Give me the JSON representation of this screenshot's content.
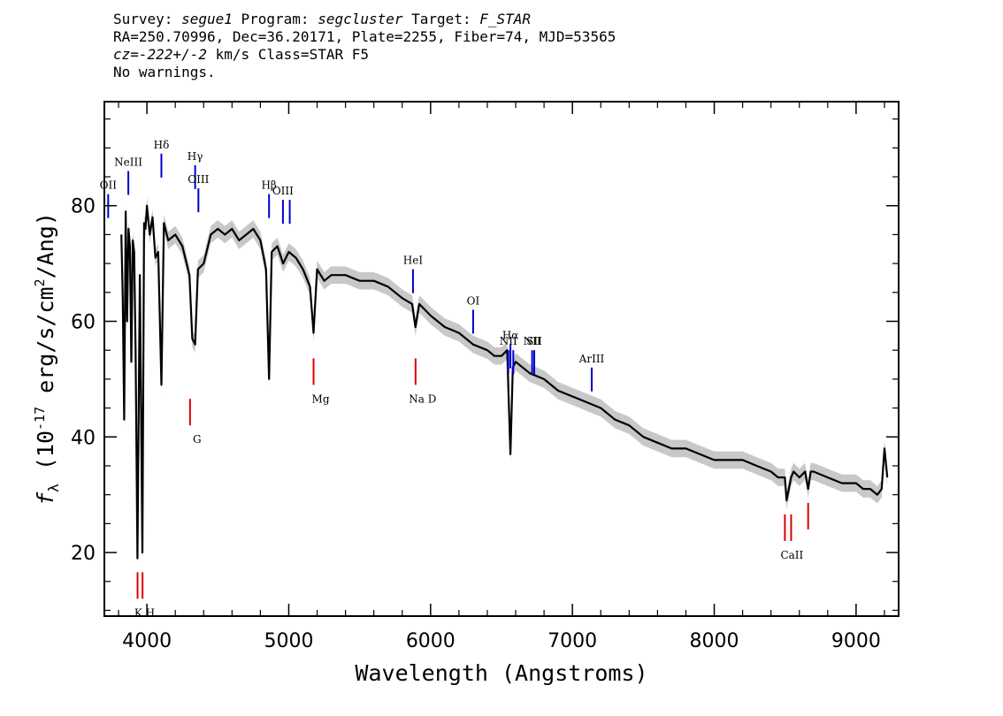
{
  "header": {
    "line1_prefix": "Survey: ",
    "survey": "segue1",
    "line1_mid": " Program: ",
    "program": "segcluster",
    "line1_mid2": " Target: ",
    "target": "F_STAR",
    "line2": "RA=250.70996, Dec=36.20171, Plate=2255, Fiber=74, MJD=53565",
    "line3_cz": "cz=-222+/-2",
    "line3_rest": " km/s Class=STAR F5",
    "line4": "No warnings."
  },
  "colors": {
    "flux": "#000000",
    "error_band": "#c8c8c8",
    "emission": "#0000cc",
    "absorption": "#dd0000"
  },
  "chart_data": {
    "type": "line",
    "xlabel": "Wavelength (Angstroms)",
    "ylabel": "f_λ (10^-17 erg/s/cm²/Ang)",
    "xlim": [
      3700,
      9300
    ],
    "ylim": [
      9,
      98
    ],
    "x_ticks": [
      4000,
      5000,
      6000,
      7000,
      8000,
      9000
    ],
    "y_ticks": [
      20,
      40,
      60,
      80
    ],
    "series": [
      {
        "x": [
          3820,
          3830,
          3840,
          3850,
          3860,
          3870,
          3880,
          3890,
          3900,
          3910,
          3920,
          3933,
          3950,
          3968,
          3980,
          3990,
          4000,
          4020,
          4040,
          4060,
          4080,
          4102,
          4120,
          4150,
          4200,
          4250,
          4280,
          4300,
          4320,
          4340,
          4360,
          4400,
          4450,
          4500,
          4550,
          4600,
          4650,
          4700,
          4750,
          4800,
          4840,
          4861,
          4880,
          4920,
          4960,
          5000,
          5050,
          5100,
          5150,
          5175,
          5200,
          5250,
          5300,
          5350,
          5400,
          5500,
          5600,
          5700,
          5800,
          5870,
          5893,
          5920,
          6000,
          6100,
          6200,
          6300,
          6400,
          6450,
          6500,
          6540,
          6563,
          6580,
          6600,
          6700,
          6800,
          6900,
          7000,
          7100,
          7200,
          7300,
          7400,
          7500,
          7600,
          7700,
          7800,
          7900,
          8000,
          8100,
          8200,
          8300,
          8400,
          8450,
          8498,
          8510,
          8542,
          8560,
          8600,
          8640,
          8662,
          8680,
          8700,
          8800,
          8900,
          9000,
          9050,
          9100,
          9150,
          9180,
          9200,
          9220
        ],
        "y": [
          75,
          64,
          43,
          79,
          60,
          76,
          73,
          53,
          74,
          72,
          55,
          19,
          68,
          20,
          77,
          76,
          80,
          75,
          78,
          71,
          72,
          49,
          77,
          74,
          75,
          73,
          70,
          68,
          57,
          56,
          69,
          70,
          75,
          76,
          75,
          76,
          74,
          75,
          76,
          74,
          69,
          50,
          72,
          73,
          70,
          72,
          71,
          69,
          66,
          58,
          69,
          67,
          68,
          68,
          68,
          67,
          67,
          66,
          64,
          63,
          59,
          63,
          61,
          59,
          58,
          56,
          55,
          54,
          54,
          55,
          37,
          52,
          53,
          51,
          50,
          48,
          47,
          46,
          45,
          43,
          42,
          40,
          39,
          38,
          38,
          37,
          36,
          36,
          36,
          35,
          34,
          33,
          33,
          29,
          33,
          34,
          33,
          34,
          31,
          34,
          34,
          33,
          32,
          32,
          31,
          31,
          30,
          31,
          38,
          33
        ],
        "error": 1.5
      }
    ],
    "emission_lines": [
      {
        "label": "OII",
        "x": 3727,
        "y": 82
      },
      {
        "label": "NeIII",
        "x": 3869,
        "y": 86
      },
      {
        "label": "Hδ",
        "x": 4102,
        "y": 89
      },
      {
        "label": "Hγ",
        "x": 4340,
        "y": 87
      },
      {
        "label": "OIII",
        "x": 4363,
        "y": 83
      },
      {
        "label": "Hβ",
        "x": 4861,
        "y": 82
      },
      {
        "label": "OIII",
        "x": 4959,
        "y": 81
      },
      {
        "label": "",
        "x": 5007,
        "y": 81
      },
      {
        "label": "HeI",
        "x": 5876,
        "y": 69
      },
      {
        "label": "OI",
        "x": 6300,
        "y": 62
      },
      {
        "label": "NII",
        "x": 6548,
        "y": 55
      },
      {
        "label": "Hα",
        "x": 6563,
        "y": 56
      },
      {
        "label": "",
        "x": 6583,
        "y": 55
      },
      {
        "label": "NII",
        "x": 6716,
        "y": 55
      },
      {
        "label": "SII",
        "x": 6731,
        "y": 55
      },
      {
        "label": "ArIII",
        "x": 7136,
        "y": 52
      }
    ],
    "absorption_lines": [
      {
        "label": "K H",
        "x": 3934,
        "y": 12
      },
      {
        "label": "",
        "x": 3969,
        "y": 12
      },
      {
        "label": "G",
        "x": 4304,
        "y": 42
      },
      {
        "label": "Mg",
        "x": 5175,
        "y": 49
      },
      {
        "label": "Na  D",
        "x": 5894,
        "y": 49
      },
      {
        "label": "CaII",
        "x": 8498,
        "y": 22
      },
      {
        "label": "",
        "x": 8542,
        "y": 22
      },
      {
        "label": "",
        "x": 8662,
        "y": 24
      }
    ]
  }
}
